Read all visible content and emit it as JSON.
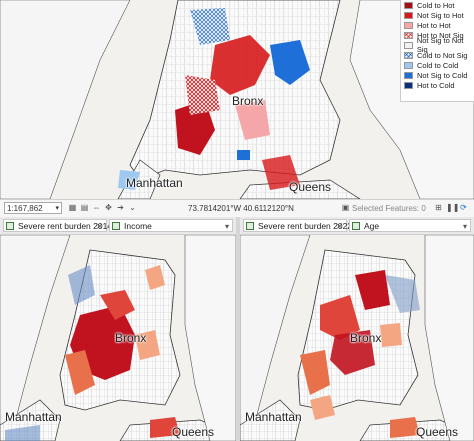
{
  "top_map": {
    "labels": {
      "bronx": "Bronx",
      "manhattan": "Manhattan",
      "queens": "Queens"
    },
    "legend": [
      {
        "label": "Cold to Hot",
        "color": "#a50f15",
        "hatch": false
      },
      {
        "label": "Not Sig to Hot",
        "color": "#d7191c",
        "hatch": false
      },
      {
        "label": "Hot to Hot",
        "color": "#f4a6a8",
        "hatch": false
      },
      {
        "label": "Hot to Not Sig",
        "color": "#e55a5a",
        "hatch": true
      },
      {
        "label": "Not Sig to Not Sig",
        "color": "#f2f2f2",
        "hatch": false
      },
      {
        "label": "Cold to Not Sig",
        "color": "#5a8fd6",
        "hatch": true
      },
      {
        "label": "Cold to Cold",
        "color": "#9ec8f0",
        "hatch": false
      },
      {
        "label": "Not Sig to Cold",
        "color": "#1f6fd8",
        "hatch": false
      },
      {
        "label": "Hot to Cold",
        "color": "#0b2f7a",
        "hatch": false
      }
    ]
  },
  "status_bar": {
    "scale": "1:167,862",
    "coordinates": "73.7814201°W 40.6112120°N",
    "selected_features": "Selected Features: 0"
  },
  "left_panel": {
    "tabs": [
      {
        "label": "Severe rent burden 2014"
      },
      {
        "label": "Income"
      }
    ],
    "labels": {
      "bronx": "Bronx",
      "manhattan": "Manhattan",
      "queens": "Queens"
    }
  },
  "right_panel": {
    "tabs": [
      {
        "label": "Severe rent burden 2022"
      },
      {
        "label": "Age"
      }
    ],
    "labels": {
      "bronx": "Bronx",
      "manhattan": "Manhattan",
      "queens": "Queens"
    }
  },
  "colors": {
    "water": "#f2f1ee",
    "land": "#fbfbfb",
    "tract_line": "#bdbdbd",
    "hot_dark": "#c1121f",
    "hot_mid": "#e0453b",
    "hot_light": "#f4a582"
  },
  "icons": [
    "scale-dropdown-icon",
    "grid-icon",
    "table-icon",
    "pause-icon",
    "refresh-icon",
    "close-icon",
    "layer-icon"
  ]
}
